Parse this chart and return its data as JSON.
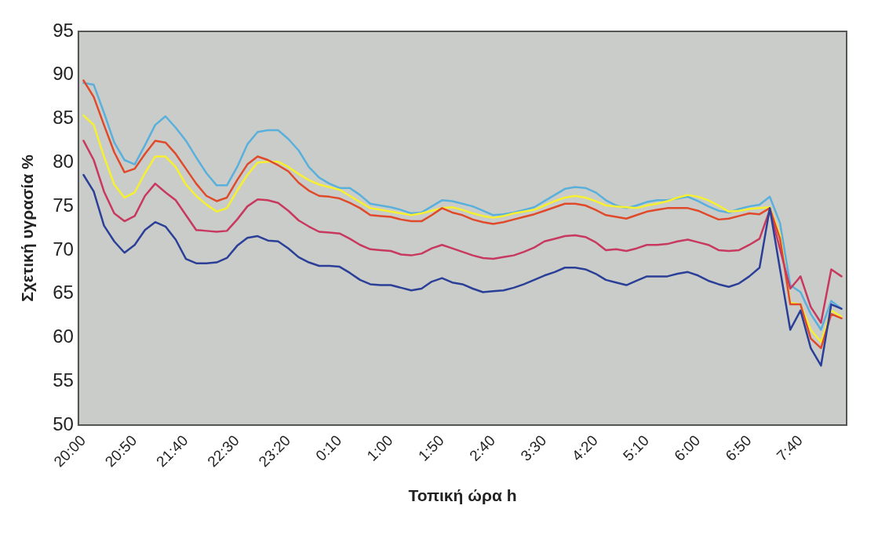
{
  "chart_data": {
    "type": "line",
    "ylabel": "Σχετική υγρασία %",
    "xlabel": "Τοπική ώρα h",
    "categories": [
      "20:00",
      null,
      null,
      null,
      null,
      "20:50",
      null,
      null,
      null,
      null,
      "21:40",
      null,
      null,
      null,
      null,
      "22:30",
      null,
      null,
      null,
      null,
      "23:20",
      null,
      null,
      null,
      null,
      "0:10",
      null,
      null,
      null,
      null,
      "1:00",
      null,
      null,
      null,
      null,
      "1:50",
      null,
      null,
      null,
      null,
      "2:40",
      null,
      null,
      null,
      null,
      "3:30",
      null,
      null,
      null,
      null,
      "4:20",
      null,
      null,
      null,
      null,
      "5:10",
      null,
      null,
      null,
      null,
      "6:00",
      null,
      null,
      null,
      null,
      "6:50",
      null,
      null,
      null,
      null,
      "7:40",
      null,
      null,
      null,
      null
    ],
    "ylim": [
      50,
      95
    ],
    "yticks": [
      50,
      55,
      60,
      65,
      70,
      75,
      80,
      85,
      90,
      95
    ],
    "grid": false,
    "legend": false,
    "marker": "none",
    "line_style": "solid",
    "series": [
      {
        "color": "#2b3f98",
        "values": [
          78.6,
          76.7,
          72.8,
          71.0,
          69.7,
          70.6,
          72.3,
          73.2,
          72.7,
          71.2,
          69.0,
          68.5,
          68.5,
          68.6,
          69.1,
          70.5,
          71.4,
          71.6,
          71.1,
          71.0,
          70.2,
          69.2,
          68.6,
          68.2,
          68.2,
          68.1,
          67.4,
          66.6,
          66.1,
          66.0,
          66.0,
          65.7,
          65.4,
          65.6,
          66.4,
          66.8,
          66.3,
          66.1,
          65.6,
          65.2,
          65.3,
          65.4,
          65.7,
          66.1,
          66.6,
          67.1,
          67.5,
          68.0,
          68.0,
          67.8,
          67.3,
          66.6,
          66.3,
          66.0,
          66.5,
          67.0,
          67.0,
          67.0,
          67.3,
          67.5,
          67.1,
          66.5,
          66.1,
          65.8,
          66.2,
          67.0,
          68.0,
          74.8,
          67.8,
          60.9,
          63.1,
          58.8,
          56.8,
          63.8,
          63.3
        ]
      },
      {
        "color": "#c8385f",
        "values": [
          82.5,
          80.3,
          76.7,
          74.2,
          73.3,
          73.9,
          76.2,
          77.6,
          76.6,
          75.7,
          74.0,
          72.3,
          72.2,
          72.1,
          72.2,
          73.5,
          75.0,
          75.8,
          75.7,
          75.4,
          74.5,
          73.4,
          72.7,
          72.1,
          72.0,
          71.9,
          71.3,
          70.6,
          70.1,
          70.0,
          69.9,
          69.5,
          69.4,
          69.6,
          70.2,
          70.6,
          70.2,
          69.8,
          69.4,
          69.1,
          69.0,
          69.2,
          69.4,
          69.8,
          70.3,
          71.0,
          71.3,
          71.6,
          71.7,
          71.5,
          70.9,
          70.0,
          70.1,
          69.9,
          70.2,
          70.6,
          70.6,
          70.7,
          71.0,
          71.2,
          70.9,
          70.6,
          70.0,
          69.9,
          70.0,
          70.6,
          71.3,
          74.6,
          70.1,
          65.6,
          67.0,
          63.5,
          61.7,
          67.8,
          67.0
        ]
      },
      {
        "color": "#e04a2a",
        "values": [
          89.4,
          87.5,
          84.3,
          81.2,
          78.9,
          79.3,
          81.0,
          82.5,
          82.3,
          81.0,
          79.3,
          77.6,
          76.2,
          75.6,
          76.0,
          78.0,
          79.8,
          80.7,
          80.3,
          79.7,
          79.0,
          77.7,
          76.8,
          76.2,
          76.1,
          75.9,
          75.4,
          74.8,
          74.0,
          73.9,
          73.8,
          73.5,
          73.3,
          73.3,
          74.0,
          74.8,
          74.3,
          74.0,
          73.5,
          73.2,
          73.0,
          73.2,
          73.5,
          73.8,
          74.1,
          74.5,
          74.9,
          75.3,
          75.3,
          75.1,
          74.6,
          74.0,
          73.8,
          73.6,
          74.0,
          74.4,
          74.6,
          74.8,
          74.8,
          74.8,
          74.5,
          74.0,
          73.5,
          73.6,
          73.9,
          74.2,
          74.1,
          74.8,
          71.3,
          63.8,
          63.8,
          59.9,
          58.8,
          62.7,
          62.2
        ]
      },
      {
        "color": "#f7f030",
        "values": [
          85.4,
          84.3,
          80.7,
          77.5,
          76.0,
          76.6,
          78.8,
          80.7,
          80.7,
          79.5,
          77.5,
          76.2,
          75.2,
          74.4,
          74.8,
          76.8,
          78.6,
          80.0,
          80.1,
          80.1,
          79.5,
          78.7,
          78.0,
          77.5,
          77.2,
          76.9,
          76.2,
          75.5,
          74.8,
          74.6,
          74.4,
          74.2,
          74.0,
          74.2,
          74.5,
          74.8,
          74.9,
          74.6,
          74.2,
          73.9,
          73.7,
          73.9,
          74.2,
          74.4,
          74.6,
          75.1,
          75.6,
          76.0,
          76.2,
          76.0,
          75.6,
          75.1,
          75.0,
          74.9,
          74.8,
          75.1,
          75.3,
          75.6,
          76.0,
          76.3,
          76.1,
          75.7,
          75.1,
          74.4,
          74.5,
          74.7,
          74.8,
          74.9,
          71.7,
          64.0,
          63.8,
          60.9,
          59.5,
          63.1,
          62.4
        ]
      },
      {
        "color": "#5ab0dc",
        "values": [
          89.1,
          88.9,
          85.7,
          82.3,
          80.3,
          79.8,
          82.0,
          84.3,
          85.3,
          84.0,
          82.5,
          80.6,
          78.8,
          77.4,
          77.4,
          79.5,
          82.1,
          83.5,
          83.7,
          83.7,
          82.7,
          81.4,
          79.5,
          78.3,
          77.6,
          77.1,
          77.1,
          76.3,
          75.3,
          75.1,
          74.9,
          74.6,
          74.2,
          74.3,
          75.0,
          75.7,
          75.6,
          75.3,
          75.0,
          74.5,
          74.0,
          74.1,
          74.3,
          74.6,
          74.9,
          75.6,
          76.3,
          77.0,
          77.2,
          77.1,
          76.6,
          75.7,
          75.1,
          74.8,
          75.1,
          75.5,
          75.7,
          75.7,
          75.9,
          76.1,
          75.6,
          75.0,
          74.5,
          74.3,
          74.7,
          75.0,
          75.2,
          76.1,
          73.1,
          66.0,
          65.2,
          62.7,
          60.9,
          64.2,
          63.3
        ]
      }
    ]
  }
}
